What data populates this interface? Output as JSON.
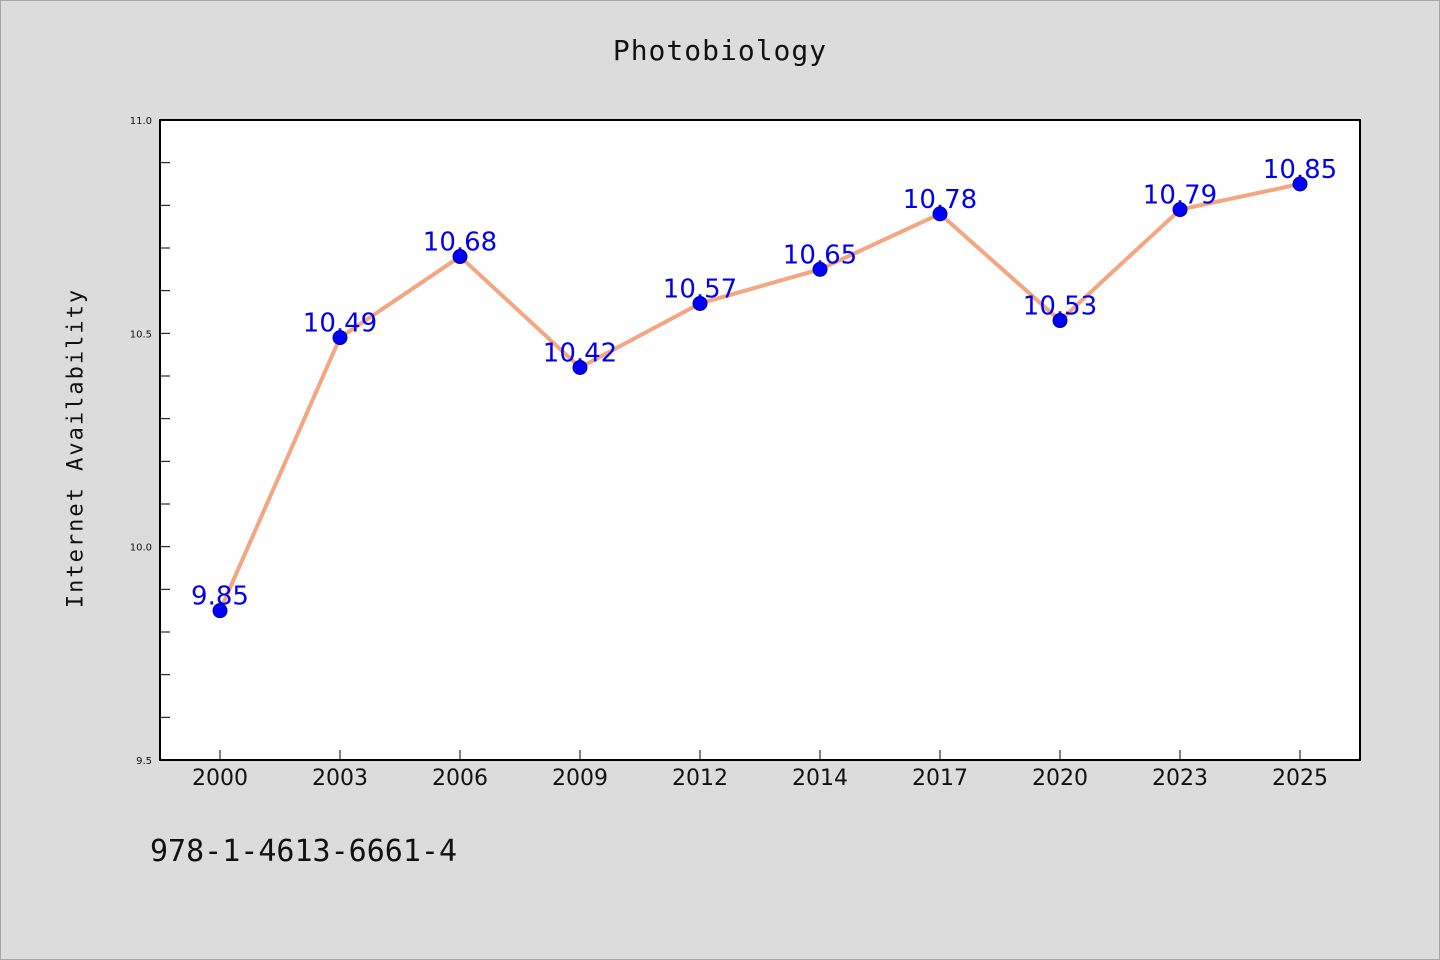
{
  "chart_data": {
    "type": "line",
    "title": "Photobiology",
    "xlabel": "",
    "ylabel": "Internet Availability",
    "categories": [
      "2000",
      "2003",
      "2006",
      "2009",
      "2012",
      "2014",
      "2017",
      "2020",
      "2023",
      "2025"
    ],
    "values": [
      9.85,
      10.49,
      10.68,
      10.42,
      10.57,
      10.65,
      10.78,
      10.53,
      10.79,
      10.85
    ],
    "data_labels": [
      "9.85",
      "10.49",
      "10.68",
      "10.42",
      "10.57",
      "10.65",
      "10.78",
      "10.53",
      "10.79",
      "10.85"
    ],
    "ylim": [
      9.5,
      11.0
    ],
    "yticks": [
      "9.5",
      "10.0",
      "10.5",
      "11.0"
    ],
    "grid": false,
    "line_color": "#f4a582",
    "marker_color": "#0000ff",
    "label_color": "#0000ee",
    "background_color": "#dcdcdc",
    "plot_background_color": "#ffffff"
  },
  "footer": {
    "isbn": "978-1-4613-6661-4"
  }
}
